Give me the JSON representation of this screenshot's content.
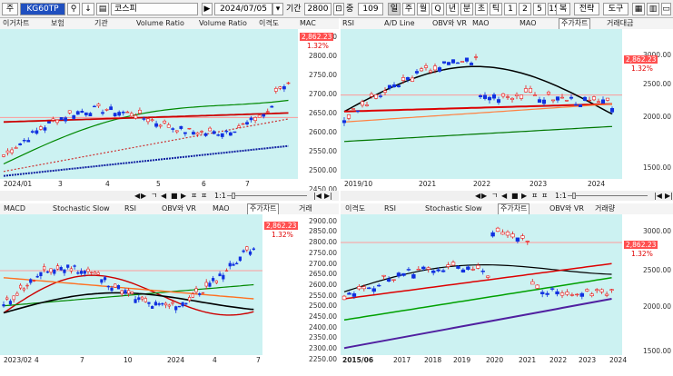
{
  "toolbar": {
    "prefix": "주",
    "code": "KG60TP",
    "search_icon": "magnifier-icon",
    "code_btn": "↓",
    "index_name": "코스피",
    "date": "2024/07/05",
    "period_label": "기간",
    "period_value": "2800",
    "count_label": "중",
    "count_value": "109",
    "btn_set": [
      "일",
      "주",
      "월",
      "Q",
      "년",
      "분",
      "초",
      "틱",
      "1",
      "2",
      "5",
      "15"
    ],
    "btn_dup": "복",
    "btn_strategy": "전략",
    "btn_tool": "도구"
  },
  "pane_tl": {
    "tabs": [
      "이거차트",
      "보험",
      "기관",
      "Volume Ratio",
      "Volume Ratio",
      "이격도",
      "MAC"
    ],
    "active_tab": "",
    "price_label": "2,862.23",
    "pct_label": "1.32%",
    "y_labels": [
      "2850.00",
      "2800.00",
      "2750.00",
      "2700.00",
      "2650.00",
      "2600.00",
      "2550.00",
      "2500.00",
      "2450.00"
    ],
    "x_labels": [
      "2024/01",
      "3",
      "4",
      "5",
      "6",
      "7"
    ]
  },
  "pane_tr": {
    "tabs": [
      "RSI",
      "A/D Line",
      "OBV와 VR",
      "MAO",
      "MAO",
      "주가차트",
      "거래대금"
    ],
    "active_tab": "주가차트",
    "price_label": "2,862.23",
    "pct_label": "1.32%",
    "y_labels": [
      "3000.00",
      "2500.00",
      "2000.00",
      "1500.00"
    ],
    "x_labels": [
      "2019/10",
      "2021",
      "2022",
      "2023",
      "2024"
    ]
  },
  "pane_bl": {
    "tabs": [
      "MACD",
      "Stochastic Slow",
      "RSI",
      "OBV와 VR",
      "MAO",
      "주가차트",
      "거래"
    ],
    "active_tab": "주가차트",
    "price_label": "2,862.23",
    "pct_label": "1.32%",
    "y_labels": [
      "2900.00",
      "2850.00",
      "2800.00",
      "2750.00",
      "2700.00",
      "2650.00",
      "2600.00",
      "2550.00",
      "2500.00",
      "2450.00",
      "2400.00",
      "2350.00",
      "2300.00",
      "2250.00"
    ],
    "x_labels": [
      "2023/02",
      "4",
      "7",
      "10",
      "2024",
      "4",
      "7"
    ]
  },
  "pane_br": {
    "tabs": [
      "이격도",
      "RSI",
      "Stochastic Slow",
      "주가차트",
      "OBV와 VR",
      "거래량"
    ],
    "active_tab": "주가차트",
    "price_label": "2,862.23",
    "pct_label": "1.32%",
    "y_labels": [
      "3000.00",
      "2500.00",
      "2000.00",
      "1500.00"
    ],
    "x_labels": [
      "2015/06",
      "2017",
      "2018",
      "2019",
      "2020",
      "2021",
      "2022",
      "2023",
      "2024"
    ]
  },
  "controls": {
    "left_arrow": "◀",
    "right_arrow": "▶",
    "first_symbol": "|◀",
    "last_symbol": "▶|",
    "play_symbols": [
      "ㄱ",
      "◀",
      "■",
      "▶",
      "ㅍ",
      "ㅍ"
    ],
    "ratio": "1:1"
  }
}
